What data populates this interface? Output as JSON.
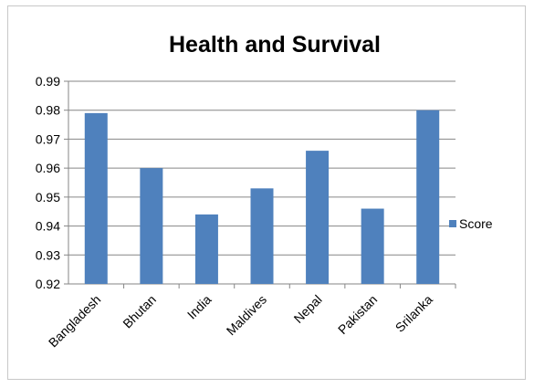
{
  "chart_data": {
    "type": "bar",
    "title": "Health and Survival",
    "categories": [
      "Bangladesh",
      "Bhutan",
      "India",
      "Maldives",
      "Nepal",
      "Pakistan",
      "Srilanka"
    ],
    "series": [
      {
        "name": "Score",
        "values": [
          0.979,
          0.96,
          0.944,
          0.953,
          0.966,
          0.946,
          0.98
        ],
        "color": "#4f81bd"
      }
    ],
    "xlabel": "",
    "ylabel": "",
    "ylim": [
      0.92,
      0.99
    ],
    "yticks": [
      "0.92",
      "0.93",
      "0.94",
      "0.95",
      "0.96",
      "0.97",
      "0.98",
      "0.99"
    ],
    "grid": true,
    "legend_position": "right"
  }
}
